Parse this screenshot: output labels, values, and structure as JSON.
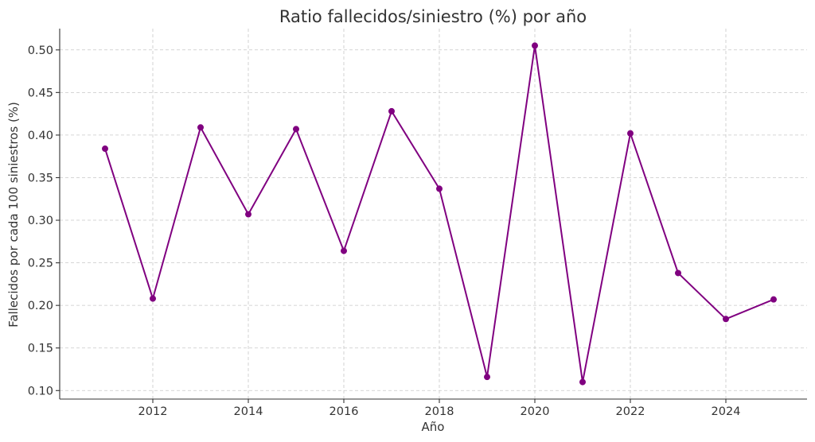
{
  "chart_data": {
    "type": "line",
    "title": "Ratio fallecidos/siniestro (%) por año",
    "xlabel": "Año",
    "ylabel": "Fallecidos por cada 100 siniestros (%)",
    "xlim": [
      2010.05,
      2025.7
    ],
    "ylim": [
      0.09,
      0.525
    ],
    "x_ticks": [
      2012,
      2014,
      2016,
      2018,
      2020,
      2022,
      2024
    ],
    "y_ticks": [
      "0.10",
      "0.15",
      "0.20",
      "0.25",
      "0.30",
      "0.35",
      "0.40",
      "0.45",
      "0.50"
    ],
    "grid": true,
    "series": [
      {
        "color": "#800080",
        "x": [
          2011,
          2012,
          2013,
          2014,
          2015,
          2016,
          2017,
          2018,
          2019,
          2020,
          2021,
          2022,
          2023,
          2024,
          2025
        ],
        "y": [
          0.384,
          0.208,
          0.409,
          0.307,
          0.407,
          0.264,
          0.428,
          0.337,
          0.116,
          0.505,
          0.11,
          0.402,
          0.238,
          0.184,
          0.207
        ]
      }
    ]
  }
}
